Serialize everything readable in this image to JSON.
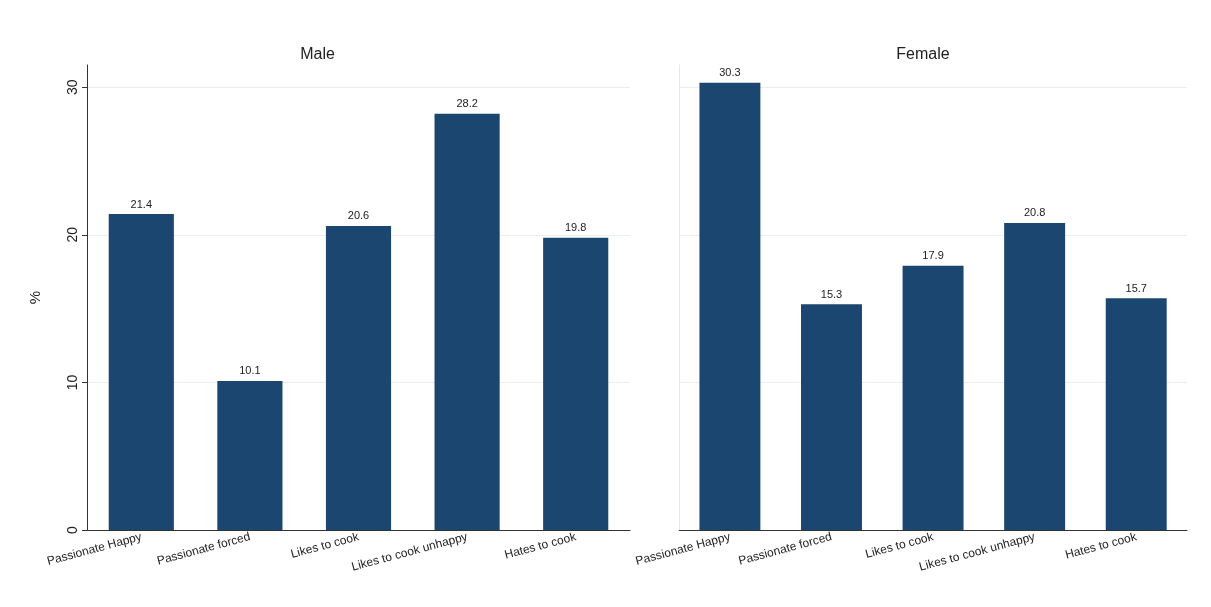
{
  "chart_data": [
    {
      "type": "bar",
      "title": "Male",
      "ylabel": "%",
      "categories": [
        "Passionate Happy",
        "Passionate forced",
        "Likes to cook",
        "Likes to cook unhappy",
        "Hates to cook"
      ],
      "values": [
        21.4,
        10.1,
        20.6,
        28.2,
        19.8
      ],
      "color": "#1a4670",
      "ylim": [
        0,
        31.5
      ],
      "yticks": [
        0,
        10,
        20,
        30
      ],
      "grid": "y",
      "data_labels": true
    },
    {
      "type": "bar",
      "title": "Female",
      "categories": [
        "Passionate Happy",
        "Passionate forced",
        "Likes to cook",
        "Likes to cook unhappy",
        "Hates to cook"
      ],
      "values": [
        30.3,
        15.3,
        17.9,
        20.8,
        15.7
      ],
      "color": "#1a4670",
      "ylim": [
        0,
        31.5
      ],
      "yticks": [
        0,
        10,
        20,
        30
      ],
      "grid": "y",
      "data_labels": true,
      "tick_labels": "x"
    }
  ]
}
